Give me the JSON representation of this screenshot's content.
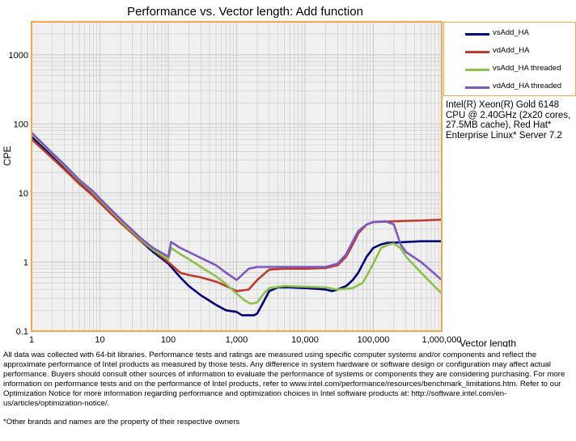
{
  "chart_data": {
    "type": "line",
    "title": "Performance vs. Vector length: Add function",
    "xlabel": "Vector length",
    "ylabel": "CPE",
    "x_scale": "log",
    "y_scale": "log",
    "xlim": [
      1,
      1000000
    ],
    "ylim": [
      0.1,
      3000
    ],
    "x_tick_labels": [
      "1",
      "10",
      "100",
      "1,000",
      "10,000",
      "100,000",
      "1,000,000"
    ],
    "x_tick_values": [
      1,
      10,
      100,
      1000,
      10000,
      100000,
      1000000
    ],
    "y_tick_labels": [
      "0.1",
      "1",
      "10",
      "100",
      "1000"
    ],
    "y_tick_values": [
      0.1,
      1,
      10,
      100,
      1000
    ],
    "grid": true,
    "legend_position": "right",
    "series": [
      {
        "name": "vsAdd_HA",
        "color": "#00007a",
        "x": [
          1,
          2,
          3,
          5,
          8,
          10,
          20,
          40,
          60,
          100,
          150,
          200,
          300,
          500,
          700,
          1000,
          1200,
          1500,
          1800,
          2000,
          2500,
          3000,
          4000,
          6000,
          10000,
          15000,
          20000,
          25000,
          30000,
          40000,
          50000,
          60000,
          80000,
          100000,
          130000,
          160000,
          200000,
          300000,
          500000,
          1000000
        ],
        "values": [
          65,
          34,
          23,
          14,
          9.5,
          7.5,
          3.8,
          2.0,
          1.4,
          0.95,
          0.6,
          0.45,
          0.33,
          0.24,
          0.2,
          0.19,
          0.17,
          0.17,
          0.17,
          0.18,
          0.27,
          0.38,
          0.43,
          0.43,
          0.42,
          0.41,
          0.4,
          0.38,
          0.4,
          0.45,
          0.55,
          0.7,
          1.2,
          1.6,
          1.8,
          1.9,
          1.9,
          1.95,
          2.0,
          2.0
        ]
      },
      {
        "name": "vdAdd_HA",
        "color": "#c0392b",
        "x": [
          1,
          2,
          3,
          5,
          8,
          10,
          20,
          40,
          60,
          100,
          150,
          200,
          300,
          500,
          700,
          1000,
          1500,
          2000,
          3000,
          5000,
          10000,
          20000,
          30000,
          40000,
          50000,
          60000,
          80000,
          100000,
          150000,
          200000,
          300000,
          500000,
          1000000
        ],
        "values": [
          60,
          32,
          22,
          13.5,
          9,
          7.2,
          3.7,
          2.0,
          1.5,
          1.0,
          0.7,
          0.65,
          0.6,
          0.52,
          0.45,
          0.38,
          0.4,
          0.55,
          0.78,
          0.8,
          0.8,
          0.82,
          0.9,
          1.2,
          1.8,
          2.6,
          3.5,
          3.8,
          3.85,
          3.9,
          3.95,
          4.0,
          4.1
        ]
      },
      {
        "name": "vsAdd_HA threaded",
        "color": "#8bc34a",
        "x": [
          1,
          2,
          3,
          5,
          8,
          10,
          20,
          40,
          60,
          100,
          110,
          150,
          200,
          300,
          500,
          700,
          1000,
          1300,
          1600,
          2000,
          2500,
          3000,
          5000,
          10000,
          20000,
          30000,
          50000,
          70000,
          100000,
          130000,
          170000,
          200000,
          250000,
          300000,
          500000,
          700000,
          1000000
        ],
        "values": [
          72,
          37,
          25,
          15,
          10,
          8,
          4.0,
          2.1,
          1.5,
          1.1,
          1.6,
          1.3,
          1.1,
          0.85,
          0.62,
          0.48,
          0.35,
          0.28,
          0.25,
          0.26,
          0.35,
          0.42,
          0.45,
          0.44,
          0.43,
          0.4,
          0.42,
          0.5,
          0.95,
          1.6,
          1.8,
          1.85,
          1.6,
          1.2,
          0.7,
          0.5,
          0.35
        ]
      },
      {
        "name": "vdAdd_HA threaded",
        "color": "#7e57c2",
        "x": [
          1,
          2,
          3,
          5,
          8,
          10,
          20,
          40,
          60,
          100,
          110,
          150,
          200,
          300,
          500,
          700,
          1000,
          1500,
          2000,
          3000,
          5000,
          10000,
          20000,
          30000,
          40000,
          50000,
          60000,
          80000,
          100000,
          150000,
          200000,
          250000,
          300000,
          500000,
          700000,
          1000000
        ],
        "values": [
          75,
          38,
          26,
          15.5,
          10.5,
          8.3,
          4.2,
          2.2,
          1.6,
          1.2,
          1.95,
          1.6,
          1.4,
          1.15,
          0.9,
          0.7,
          0.55,
          0.8,
          0.85,
          0.85,
          0.85,
          0.85,
          0.85,
          0.95,
          1.3,
          2.0,
          2.8,
          3.5,
          3.8,
          3.9,
          3.5,
          1.8,
          1.4,
          1.0,
          0.75,
          0.55
        ]
      }
    ]
  },
  "note": {
    "cpu": "Intel(R) Xeon(R) Gold 6148 CPU @ 2.40GHz (2x20 cores, 27.5MB cache), Red Hat* Enterprise Linux* Server 7.2"
  },
  "footer": {
    "disclaimer": "All data was collected with 64-bit libraries. Performance tests and ratings are measured using specific computer systems and/or components and reflect the approximate performance of Intel products as measured by those tests. Any difference in system hardware or software design or configuration may affect actual performance. Buyers should consult other sources of information to evaluate the performance of systems or components they are considering purchasing. For more information on performance tests and on the performance of Intel products, refer to www.intel.com/performance/resources/benchmark_limitations.htm. Refer to our Optimization Notice for more information regarding performance and optimization choices in Intel software products at: http://software.intel.com/en-us/articles/optimization-notice/.",
    "brands": "*Other brands and names are the property of their respective owners"
  },
  "colors": {
    "plot_border": "#f5a54a",
    "plot_background": "#f0f0f0",
    "grid": "#c8c8c8"
  }
}
